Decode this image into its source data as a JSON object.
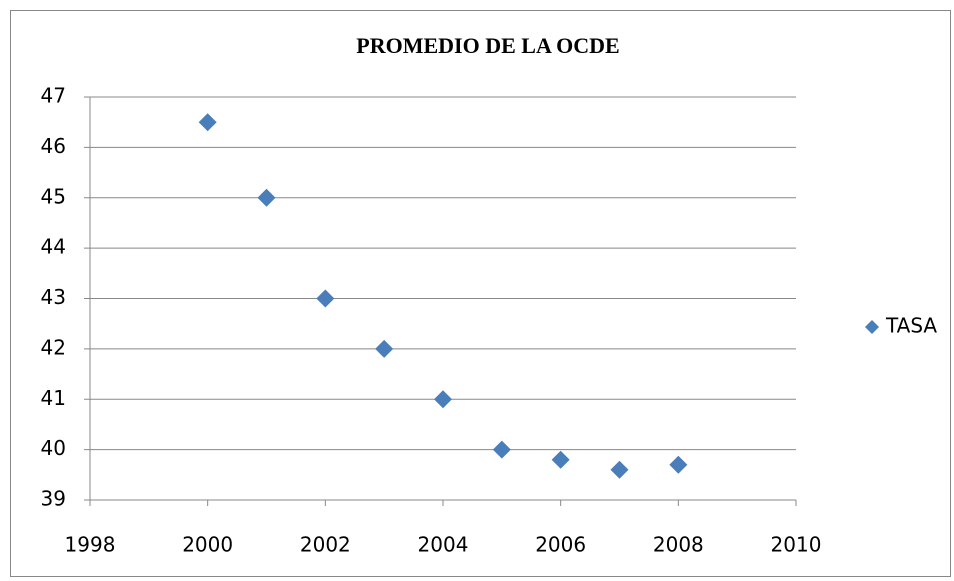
{
  "chart_data": {
    "type": "scatter",
    "title": "PROMEDIO DE LA OCDE",
    "series": [
      {
        "name": "TASA",
        "color": "#4a7ebb",
        "x": [
          2000,
          2001,
          2002,
          2003,
          2004,
          2005,
          2006,
          2007,
          2008
        ],
        "values": [
          46.5,
          45,
          43,
          42,
          41,
          40,
          39.8,
          39.6,
          39.7
        ]
      }
    ],
    "xlim": [
      1998,
      2010
    ],
    "xticks": [
      1998,
      2000,
      2002,
      2004,
      2006,
      2008,
      2010
    ],
    "ylim": [
      39,
      47
    ],
    "yticks": [
      39,
      40,
      41,
      42,
      43,
      44,
      45,
      46,
      47
    ],
    "grid": true,
    "legend": "right"
  }
}
